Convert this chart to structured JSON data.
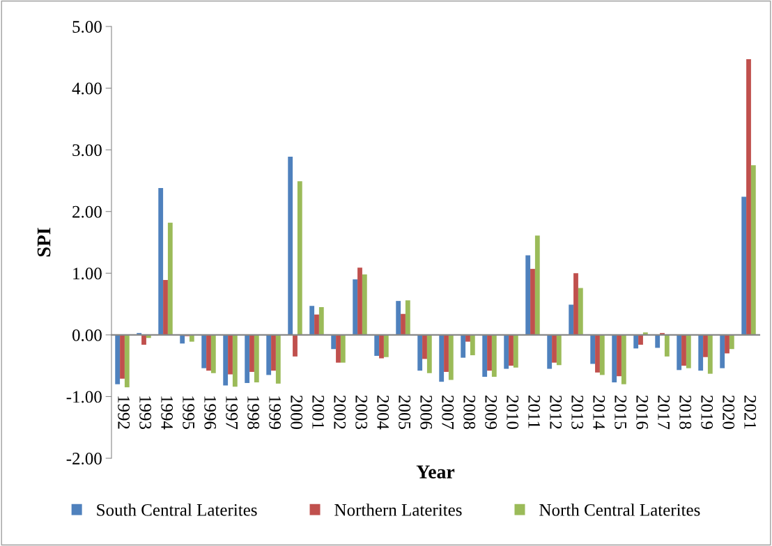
{
  "chart_data": {
    "type": "bar",
    "xlabel": "Year",
    "ylabel": "SPI",
    "categories": [
      "1992",
      "1993",
      "1994",
      "1995",
      "1996",
      "1997",
      "1998",
      "1999",
      "2000",
      "2001",
      "2002",
      "2003",
      "2004",
      "2005",
      "2006",
      "2007",
      "2008",
      "2009",
      "2010",
      "2011",
      "2012",
      "2013",
      "2014",
      "2015",
      "2016",
      "2017",
      "2018",
      "2019",
      "2020",
      "2021"
    ],
    "series": [
      {
        "name": "South Central Laterites",
        "color": "#4f81bd",
        "values": [
          -0.8,
          0.03,
          2.38,
          -0.14,
          -0.54,
          -0.82,
          -0.78,
          -0.65,
          2.89,
          0.47,
          -0.23,
          0.9,
          -0.34,
          0.55,
          -0.58,
          -0.76,
          -0.37,
          -0.68,
          -0.55,
          1.29,
          -0.55,
          0.49,
          -0.47,
          -0.77,
          -0.22,
          -0.21,
          -0.57,
          -0.58,
          -0.54,
          2.24
        ]
      },
      {
        "name": "Northern Laterites",
        "color": "#c0504d",
        "values": [
          -0.71,
          -0.16,
          0.89,
          -0.02,
          -0.58,
          -0.64,
          -0.6,
          -0.58,
          -0.35,
          0.33,
          -0.45,
          1.09,
          -0.38,
          0.34,
          -0.39,
          -0.6,
          -0.11,
          -0.58,
          -0.5,
          1.07,
          -0.45,
          1.0,
          -0.61,
          -0.67,
          -0.16,
          0.03,
          -0.5,
          -0.36,
          -0.3,
          4.47
        ]
      },
      {
        "name": "North Central Laterites",
        "color": "#9bbb59",
        "values": [
          -0.85,
          -0.05,
          1.82,
          -0.11,
          -0.62,
          -0.84,
          -0.77,
          -0.79,
          2.49,
          0.45,
          -0.45,
          0.98,
          -0.36,
          0.56,
          -0.62,
          -0.73,
          -0.33,
          -0.68,
          -0.53,
          1.61,
          -0.49,
          0.76,
          -0.65,
          -0.8,
          0.04,
          -0.35,
          -0.54,
          -0.63,
          -0.23,
          2.75
        ]
      }
    ],
    "ylim": [
      -2,
      5
    ],
    "yticks": [
      {
        "value": -2,
        "label": "-2.00"
      },
      {
        "value": -1,
        "label": "-1.00"
      },
      {
        "value": 0,
        "label": "0.00"
      },
      {
        "value": 1,
        "label": "1.00"
      },
      {
        "value": 2,
        "label": "2.00"
      },
      {
        "value": 3,
        "label": "3.00"
      },
      {
        "value": 4,
        "label": "4.00"
      },
      {
        "value": 5,
        "label": "5.00"
      }
    ],
    "legend": "bottom"
  }
}
